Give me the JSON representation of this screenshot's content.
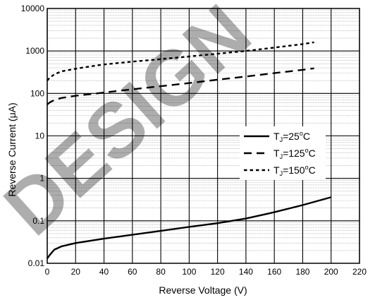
{
  "chart_data": {
    "type": "line",
    "title": "",
    "xlabel": "Reverse Voltage (V)",
    "ylabel_main": "Reverse Current (",
    "ylabel_unit": "μ",
    "ylabel_tail": "A)",
    "xlim": [
      0,
      220
    ],
    "ylim": [
      0.01,
      10000
    ],
    "yscale": "log",
    "grid": true,
    "legend_position": "center-right",
    "x_ticks": [
      "0",
      "20",
      "40",
      "60",
      "80",
      "100",
      "120",
      "140",
      "160",
      "180",
      "200",
      "220"
    ],
    "y_ticks": [
      "0.01",
      "0.1",
      "1",
      "10",
      "100",
      "1000",
      "10000"
    ],
    "series": [
      {
        "name": "TJ=25°C",
        "legend": {
          "t": "T",
          "sub": "J",
          "mid": "=25",
          "sup": "o",
          "end": "C"
        },
        "style": "solid",
        "x": [
          0,
          2,
          5,
          10,
          20,
          40,
          60,
          80,
          100,
          120,
          140,
          160,
          180,
          200
        ],
        "y": [
          0.013,
          0.016,
          0.021,
          0.025,
          0.03,
          0.038,
          0.047,
          0.058,
          0.072,
          0.088,
          0.113,
          0.16,
          0.235,
          0.36
        ]
      },
      {
        "name": "TJ=125°C",
        "legend": {
          "t": "T",
          "sub": "J",
          "mid": "=125",
          "sup": "o",
          "end": "C"
        },
        "style": "dashed",
        "x": [
          0,
          2,
          5,
          10,
          20,
          30,
          40,
          60,
          80,
          100,
          120,
          140,
          160,
          180,
          188
        ],
        "y": [
          55,
          62,
          70,
          78,
          88,
          96,
          105,
          125,
          148,
          175,
          210,
          250,
          300,
          360,
          390
        ]
      },
      {
        "name": "TJ=150°C",
        "legend": {
          "t": "T",
          "sub": "J",
          "mid": "=150",
          "sup": "o",
          "end": "C"
        },
        "style": "dotted",
        "x": [
          0,
          2,
          5,
          10,
          20,
          30,
          40,
          60,
          80,
          100,
          120,
          140,
          160,
          180,
          188
        ],
        "y": [
          200,
          240,
          280,
          330,
          380,
          430,
          480,
          560,
          640,
          740,
          860,
          1000,
          1200,
          1450,
          1600
        ]
      }
    ]
  },
  "watermark": "DESIGN"
}
